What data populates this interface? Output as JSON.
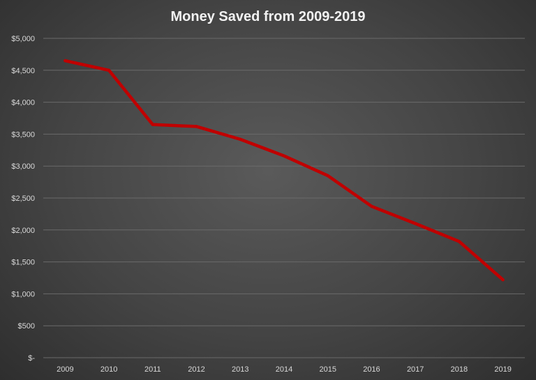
{
  "chart_data": {
    "type": "line",
    "title": "Money Saved from 2009-2019",
    "xlabel": "",
    "ylabel": "",
    "categories": [
      "2009",
      "2010",
      "2011",
      "2012",
      "2013",
      "2014",
      "2015",
      "2016",
      "2017",
      "2018",
      "2019"
    ],
    "series": [
      {
        "values": [
          4650,
          4500,
          3650,
          3620,
          3420,
          3160,
          2850,
          2370,
          2100,
          1820,
          1220
        ],
        "color": "#c00000"
      }
    ],
    "ylim": [
      0,
      5000
    ],
    "y_ticks": [
      {
        "value": 0,
        "label": "$-"
      },
      {
        "value": 500,
        "label": "$500"
      },
      {
        "value": 1000,
        "label": "$1,000"
      },
      {
        "value": 1500,
        "label": "$1,500"
      },
      {
        "value": 2000,
        "label": "$2,000"
      },
      {
        "value": 2500,
        "label": "$2,500"
      },
      {
        "value": 3000,
        "label": "$3,000"
      },
      {
        "value": 3500,
        "label": "$3,500"
      },
      {
        "value": 4000,
        "label": "$4,000"
      },
      {
        "value": 4500,
        "label": "$4,500"
      },
      {
        "value": 5000,
        "label": "$5,000"
      }
    ],
    "grid": true,
    "legend": "none"
  }
}
